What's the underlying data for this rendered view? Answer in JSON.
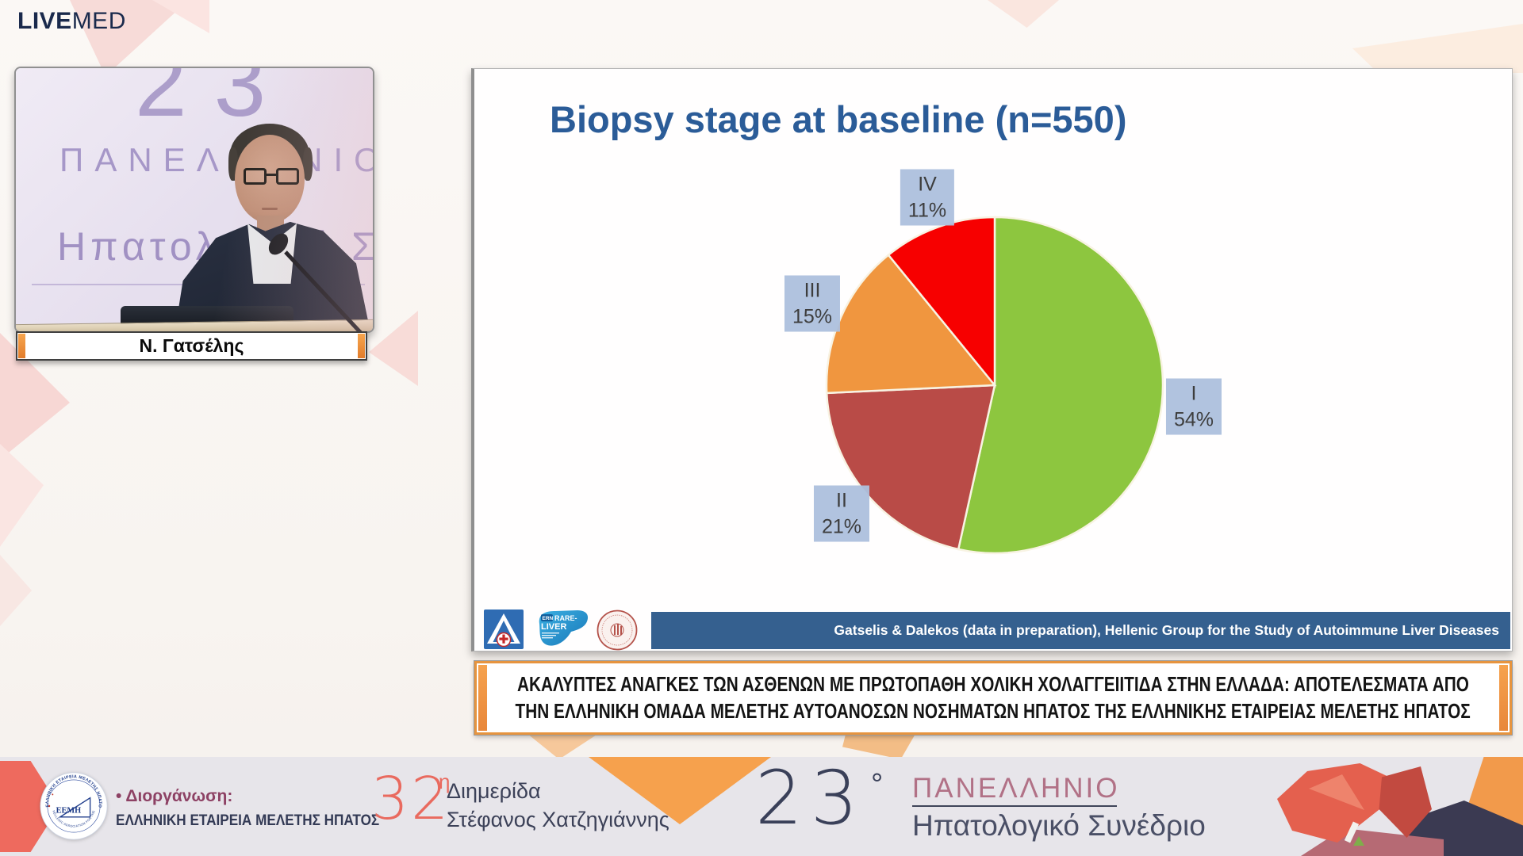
{
  "header": {
    "brand_live": "LIVE",
    "brand_med": "MED"
  },
  "video": {
    "speaker_name": "Ν. Γατσέλης",
    "backdrop": {
      "line1": "23",
      "line2": "ΠΑΝΕΛΛΗΝΙΟ",
      "line3": "Ηπατολογικό Σ"
    }
  },
  "slide": {
    "title": "Biopsy stage at baseline (n=550)",
    "attribution": "Gatselis  & Dalekos (data in preparation), Hellenic Group for the Study of Autoimmune Liver Diseases",
    "logos": {
      "hospital_emblem": "hospital-emblem",
      "ern": {
        "tag": "ERN",
        "line1": "RARE-",
        "line2": "LIVER"
      },
      "university_seal": "university-seal"
    }
  },
  "chart_data": {
    "type": "pie",
    "title": "Biopsy stage at baseline (n=550)",
    "categories": [
      "I",
      "II",
      "III",
      "IV"
    ],
    "values": [
      54,
      21,
      15,
      11
    ],
    "unit": "%",
    "colors": [
      "#8dc63f",
      "#b94b47",
      "#f0963f",
      "#f70000"
    ],
    "start_angle_deg": 0,
    "direction": "clockwise",
    "legend": "none",
    "label_style": "boxed labels outside slices: roman numeral above percent"
  },
  "banner": {
    "line1": "ΑΚΑΛΥΠΤΕΣ ΑΝΑΓΚΕΣ ΤΩΝ ΑΣΘΕΝΩΝ ΜΕ ΠΡΩΤΟΠΑΘΗ ΧΟΛΙΚΗ ΧΟΛΑΓΓΕΙΙΤΙΔΑ ΣΤΗΝ ΕΛΛΑΔΑ: ΑΠΟΤΕΛΕΣΜΑΤΑ ΑΠΟ",
    "line2": "ΤΗΝ ΕΛΛΗΝΙΚΗ ΟΜΑΔΑ ΜΕΛΕΤΗΣ ΑΥΤΟΑΝΟΣΩΝ ΝΟΣΗΜΑΤΩΝ ΗΠΑΤΟΣ ΤΗΣ ΕΛΛΗΝΙΚΗΣ ΕΤΑΙΡΕΙΑΣ ΜΕΛΕΤΗΣ ΗΠΑΤΟΣ"
  },
  "footer": {
    "seal": {
      "top_arc": "ΕΛΛΗΝΙΚΗ ΕΤΑΙΡΕΙΑ ΜΕΛΕΤΗΣ ΗΠΑΤΟΣ",
      "bottom_arc": "HELLENIC ASSOCIATION FOR THE STUDY OF LIVER",
      "center": "ΕΕΜΗ"
    },
    "organizer_label": "• Διοργάνωση:",
    "organizer_name": "ΕΛΛΗΝΙΚΗ ΕΤΑΙΡΕΙΑ ΜΕΛΕΤΗΣ ΗΠΑΤΟΣ",
    "event1": {
      "number": "32",
      "sup": "η",
      "line1": "Διημερίδα",
      "line2": "Στέφανος Χατζηγιάννης"
    },
    "event2": {
      "number": "23",
      "sup": "°",
      "line1": "ΠΑΝΕΛΛΗΝΙΟ",
      "line2": "Ηπατολογικό Συνέδριο"
    }
  },
  "colors": {
    "brand_navy": "#1a2a4c",
    "slide_title_blue": "#2b5c98",
    "attribution_bar": "#35608f",
    "label_box": "#adc0dd",
    "banner_orange": "#e6943f",
    "footer_bg": "#e7e5ea",
    "footer_coral": "#e96a5f",
    "footer_plum": "#8d4164",
    "footer_navy": "#3c4158",
    "footer_mauve": "#b17186"
  }
}
